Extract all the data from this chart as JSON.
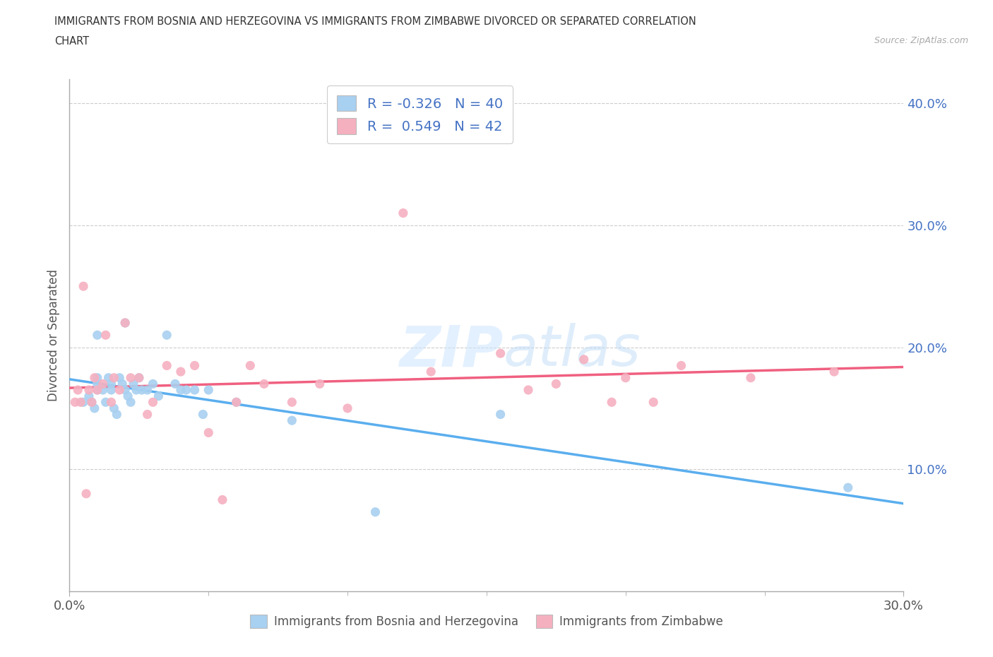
{
  "title_line1": "IMMIGRANTS FROM BOSNIA AND HERZEGOVINA VS IMMIGRANTS FROM ZIMBABWE DIVORCED OR SEPARATED CORRELATION",
  "title_line2": "CHART",
  "source": "Source: ZipAtlas.com",
  "ylabel": "Divorced or Separated",
  "legend_label1": "Immigrants from Bosnia and Herzegovina",
  "legend_label2": "Immigrants from Zimbabwe",
  "R1": -0.326,
  "N1": 40,
  "R2": 0.549,
  "N2": 42,
  "color1": "#a8d0f0",
  "color2": "#f5b0c0",
  "trendline1_color": "#5aaeee",
  "trendline2_color": "#f06080",
  "trendline_dashed_color": "#cccccc",
  "xlim": [
    0.0,
    0.3
  ],
  "ylim": [
    0.0,
    0.42
  ],
  "ytick_positions": [
    0.1,
    0.2,
    0.3,
    0.4
  ],
  "ytick_labels": [
    "10.0%",
    "20.0%",
    "30.0%",
    "40.0%"
  ],
  "xtick_left_label": "0.0%",
  "xtick_right_label": "30.0%",
  "bosnia_x": [
    0.005,
    0.007,
    0.008,
    0.009,
    0.01,
    0.01,
    0.01,
    0.01,
    0.012,
    0.013,
    0.014,
    0.015,
    0.015,
    0.016,
    0.017,
    0.018,
    0.019,
    0.02,
    0.02,
    0.021,
    0.022,
    0.023,
    0.024,
    0.025,
    0.026,
    0.028,
    0.03,
    0.032,
    0.035,
    0.038,
    0.04,
    0.042,
    0.045,
    0.048,
    0.05,
    0.06,
    0.08,
    0.11,
    0.155,
    0.28
  ],
  "bosnia_y": [
    0.155,
    0.16,
    0.155,
    0.15,
    0.175,
    0.17,
    0.165,
    0.21,
    0.165,
    0.155,
    0.175,
    0.17,
    0.165,
    0.15,
    0.145,
    0.175,
    0.17,
    0.22,
    0.165,
    0.16,
    0.155,
    0.17,
    0.165,
    0.175,
    0.165,
    0.165,
    0.17,
    0.16,
    0.21,
    0.17,
    0.165,
    0.165,
    0.165,
    0.145,
    0.165,
    0.155,
    0.14,
    0.065,
    0.145,
    0.085
  ],
  "zimbabwe_x": [
    0.002,
    0.003,
    0.004,
    0.005,
    0.006,
    0.007,
    0.008,
    0.009,
    0.01,
    0.012,
    0.013,
    0.015,
    0.016,
    0.018,
    0.02,
    0.022,
    0.025,
    0.028,
    0.03,
    0.035,
    0.04,
    0.045,
    0.05,
    0.055,
    0.06,
    0.065,
    0.07,
    0.08,
    0.09,
    0.1,
    0.12,
    0.13,
    0.155,
    0.165,
    0.175,
    0.185,
    0.195,
    0.2,
    0.21,
    0.22,
    0.245,
    0.275
  ],
  "zimbabwe_y": [
    0.155,
    0.165,
    0.155,
    0.25,
    0.08,
    0.165,
    0.155,
    0.175,
    0.165,
    0.17,
    0.21,
    0.155,
    0.175,
    0.165,
    0.22,
    0.175,
    0.175,
    0.145,
    0.155,
    0.185,
    0.18,
    0.185,
    0.13,
    0.075,
    0.155,
    0.185,
    0.17,
    0.155,
    0.17,
    0.15,
    0.31,
    0.18,
    0.195,
    0.165,
    0.17,
    0.19,
    0.155,
    0.175,
    0.155,
    0.185,
    0.175,
    0.18
  ]
}
